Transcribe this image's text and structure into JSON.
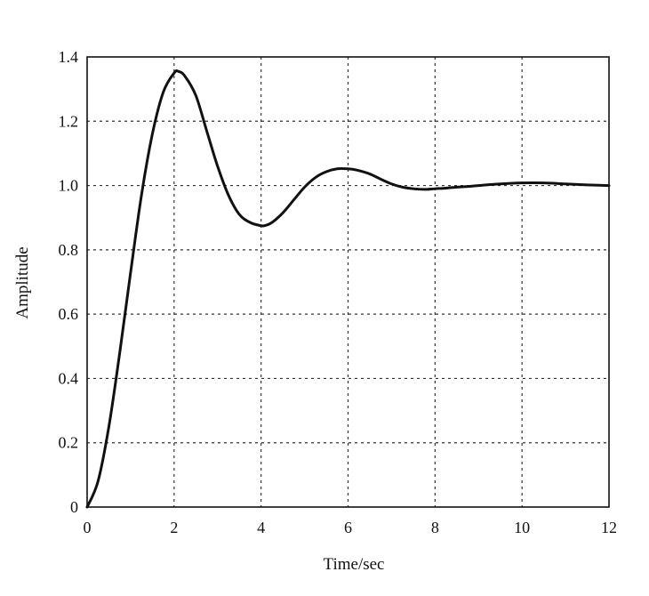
{
  "chart_data": {
    "type": "line",
    "title": "",
    "xlabel": "Time/sec",
    "ylabel": "Amplitude",
    "xlim": [
      0,
      12
    ],
    "ylim": [
      0,
      1.4
    ],
    "x_ticks": [
      "0",
      "2",
      "4",
      "6",
      "8",
      "10",
      "12"
    ],
    "y_ticks": [
      "0",
      "0.2",
      "0.4",
      "0.6",
      "0.8",
      "1.0",
      "1.2",
      "1.4"
    ],
    "grid": true,
    "series": [
      {
        "x": [
          0,
          0.25,
          0.5,
          0.75,
          1.0,
          1.25,
          1.5,
          1.75,
          2.0,
          2.1,
          2.25,
          2.5,
          2.75,
          3.0,
          3.25,
          3.5,
          3.75,
          4.0,
          4.1,
          4.25,
          4.5,
          4.75,
          5.0,
          5.25,
          5.5,
          5.75,
          6.0,
          6.2,
          6.5,
          6.75,
          7.0,
          7.25,
          7.5,
          7.75,
          8.0,
          8.25,
          8.5,
          8.75,
          9.0,
          9.5,
          10.0,
          10.5,
          11.0,
          11.5,
          12.0
        ],
        "y": [
          0,
          0.08,
          0.25,
          0.48,
          0.73,
          0.97,
          1.16,
          1.29,
          1.35,
          1.355,
          1.34,
          1.28,
          1.17,
          1.06,
          0.97,
          0.91,
          0.885,
          0.875,
          0.876,
          0.885,
          0.915,
          0.955,
          0.995,
          1.025,
          1.043,
          1.052,
          1.052,
          1.048,
          1.036,
          1.02,
          1.005,
          0.995,
          0.99,
          0.988,
          0.99,
          0.992,
          0.995,
          0.997,
          1.0,
          1.005,
          1.008,
          1.008,
          1.005,
          1.002,
          1.0
        ]
      }
    ]
  }
}
